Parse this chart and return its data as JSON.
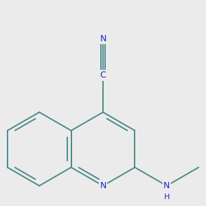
{
  "background_color": "#ebebeb",
  "bond_color": "#4a8a8a",
  "n_color": "#2020cc",
  "line_width": 1.4,
  "font_size": 8.5,
  "figsize": [
    3.0,
    3.0
  ],
  "dpi": 100,
  "xlim": [
    -2.8,
    2.8
  ],
  "ylim": [
    -2.5,
    3.0
  ]
}
